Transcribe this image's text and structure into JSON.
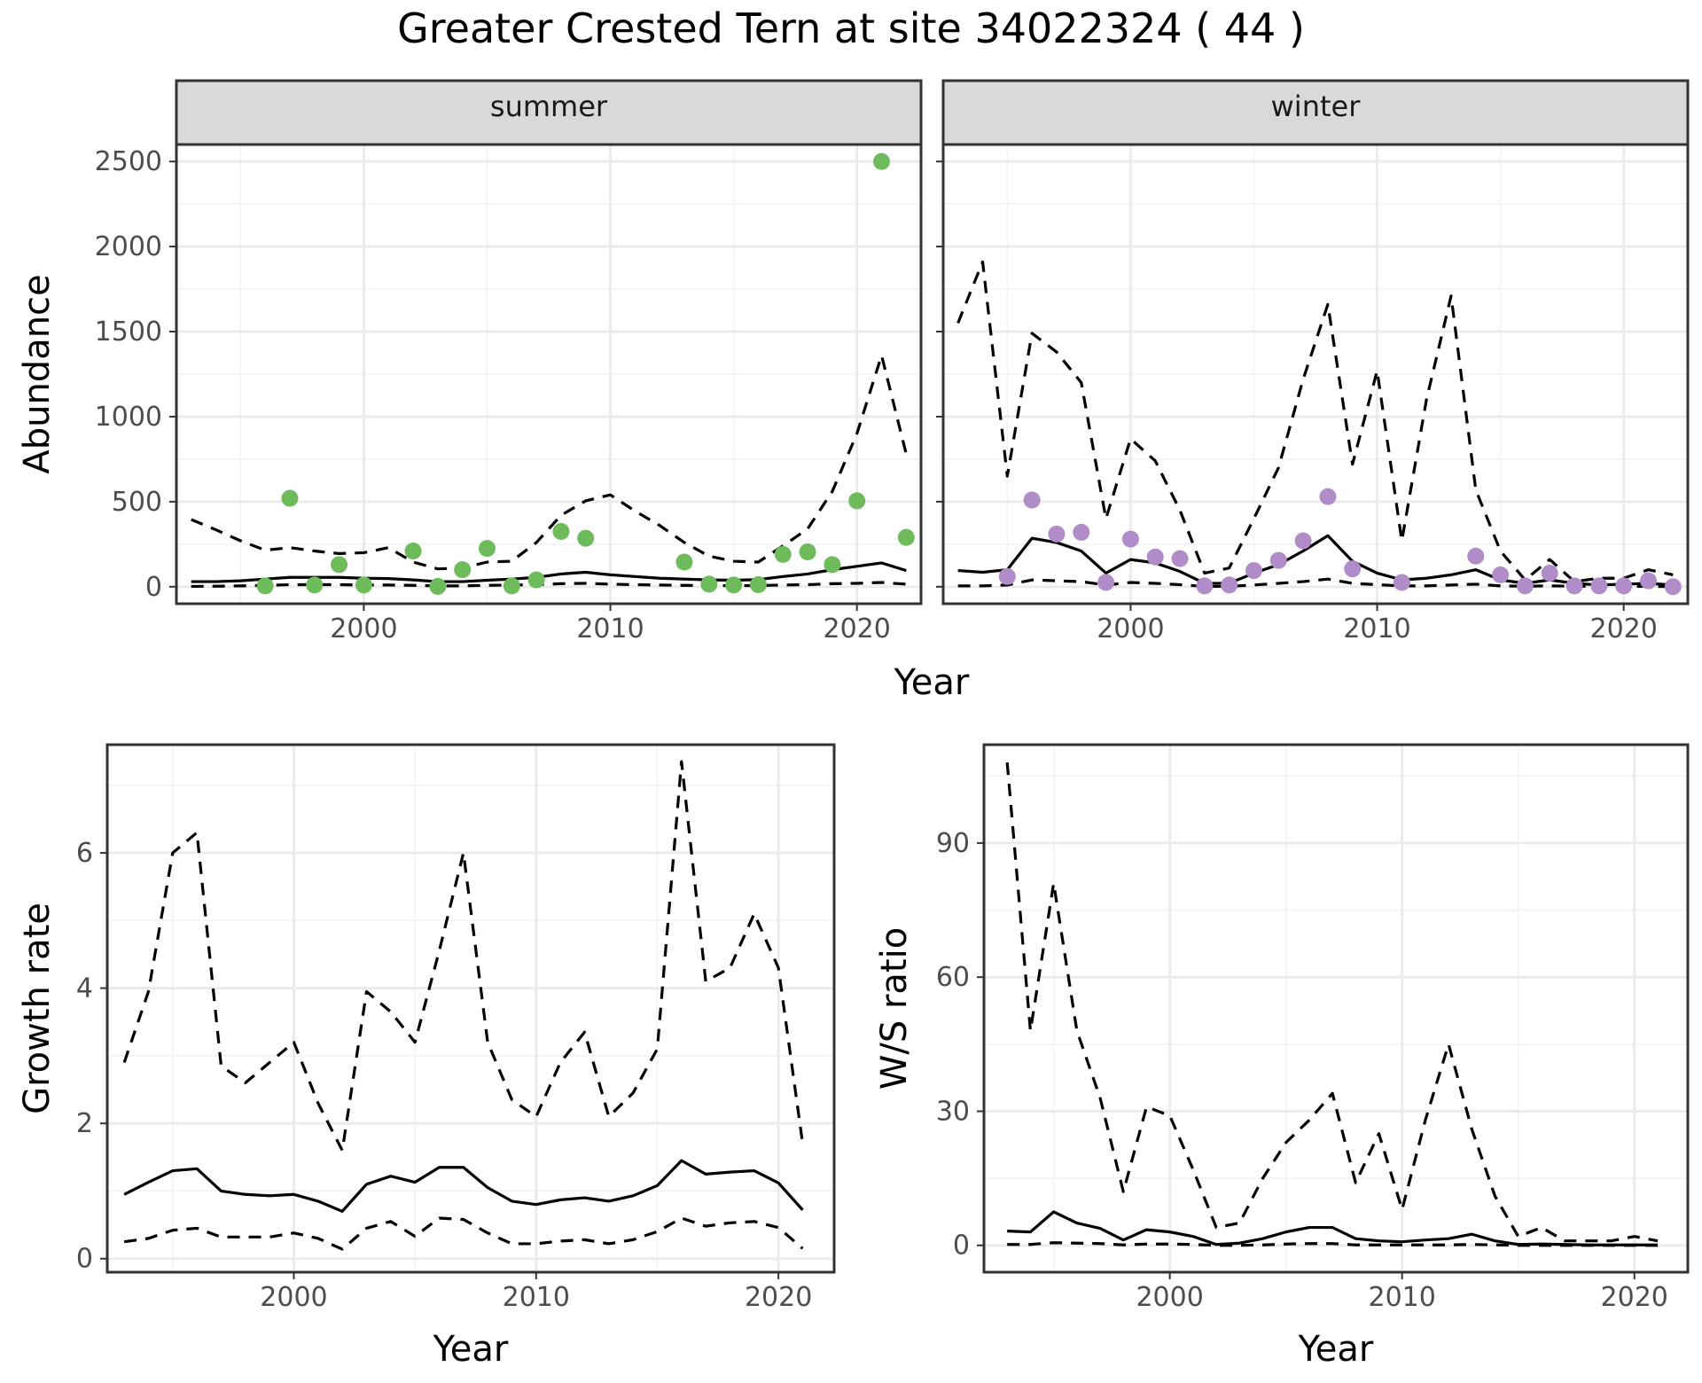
{
  "figure": {
    "title": "Greater Crested Tern at site 34022324 ( 44 )"
  },
  "colors": {
    "summer_points": "#6dbb5a",
    "winter_points": "#b08cc9",
    "line": "#000000",
    "grid_major": "#ebebeb",
    "grid_minor": "#f3f3f3",
    "strip_fill": "#d9d9d9",
    "panel_border": "#333333",
    "tick_label": "#4d4d4d"
  },
  "chart_data": [
    {
      "type": "scatter",
      "facet_strips": [
        "summer",
        "winter"
      ],
      "ylabel": "Abundance",
      "xlabel": "Year",
      "xlim": [
        1992.4,
        2022.6
      ],
      "ylim": [
        -100,
        2600
      ],
      "x_ticks": [
        2000,
        2010,
        2020
      ],
      "y_ticks": [
        0,
        500,
        1000,
        1500,
        2000,
        2500
      ],
      "grid": true,
      "legend": "none",
      "panels": [
        {
          "name": "summer",
          "points": [
            {
              "x": 1996,
              "y": 5
            },
            {
              "x": 1997,
              "y": 520
            },
            {
              "x": 1998,
              "y": 10
            },
            {
              "x": 1999,
              "y": 130
            },
            {
              "x": 2000,
              "y": 10
            },
            {
              "x": 2002,
              "y": 210
            },
            {
              "x": 2003,
              "y": 2
            },
            {
              "x": 2004,
              "y": 100
            },
            {
              "x": 2005,
              "y": 225
            },
            {
              "x": 2006,
              "y": 5
            },
            {
              "x": 2007,
              "y": 40
            },
            {
              "x": 2008,
              "y": 325
            },
            {
              "x": 2009,
              "y": 285
            },
            {
              "x": 2013,
              "y": 145
            },
            {
              "x": 2014,
              "y": 15
            },
            {
              "x": 2015,
              "y": 10
            },
            {
              "x": 2016,
              "y": 12
            },
            {
              "x": 2017,
              "y": 190
            },
            {
              "x": 2018,
              "y": 205
            },
            {
              "x": 2019,
              "y": 130
            },
            {
              "x": 2020,
              "y": 505
            },
            {
              "x": 2021,
              "y": 2500
            },
            {
              "x": 2022,
              "y": 290
            }
          ],
          "estimate": {
            "x": [
              1993,
              1994,
              1995,
              1996,
              1997,
              1998,
              1999,
              2000,
              2001,
              2002,
              2003,
              2004,
              2005,
              2006,
              2007,
              2008,
              2009,
              2010,
              2011,
              2012,
              2013,
              2014,
              2015,
              2016,
              2017,
              2018,
              2019,
              2020,
              2021,
              2022
            ],
            "y": [
              30,
              30,
              35,
              45,
              55,
              55,
              55,
              50,
              48,
              40,
              30,
              30,
              38,
              45,
              55,
              75,
              85,
              70,
              60,
              50,
              45,
              40,
              38,
              42,
              60,
              75,
              100,
              120,
              140,
              95
            ]
          },
          "upper": {
            "x": [
              1993,
              1994,
              1995,
              1996,
              1997,
              1998,
              1999,
              2000,
              2001,
              2002,
              2003,
              2004,
              2005,
              2006,
              2007,
              2008,
              2009,
              2010,
              2011,
              2012,
              2013,
              2014,
              2015,
              2016,
              2017,
              2018,
              2019,
              2020,
              2021,
              2022
            ],
            "y": [
              395,
              335,
              270,
              215,
              230,
              210,
              195,
              200,
              230,
              145,
              105,
              110,
              145,
              150,
              260,
              420,
              505,
              540,
              445,
              360,
              260,
              180,
              150,
              145,
              240,
              340,
              560,
              900,
              1360,
              780
            ]
          },
          "lower": {
            "x": [
              1993,
              1994,
              1995,
              1996,
              1997,
              1998,
              1999,
              2000,
              2001,
              2002,
              2003,
              2004,
              2005,
              2006,
              2007,
              2008,
              2009,
              2010,
              2011,
              2012,
              2013,
              2014,
              2015,
              2016,
              2017,
              2018,
              2019,
              2020,
              2021,
              2022
            ],
            "y": [
              2,
              3,
              5,
              8,
              12,
              12,
              12,
              10,
              10,
              8,
              5,
              5,
              8,
              10,
              12,
              18,
              20,
              15,
              12,
              10,
              8,
              7,
              6,
              7,
              10,
              12,
              18,
              20,
              25,
              15
            ]
          }
        },
        {
          "name": "winter",
          "points": [
            {
              "x": 1995,
              "y": 60
            },
            {
              "x": 1996,
              "y": 510
            },
            {
              "x": 1997,
              "y": 310
            },
            {
              "x": 1998,
              "y": 320
            },
            {
              "x": 1999,
              "y": 25
            },
            {
              "x": 2000,
              "y": 280
            },
            {
              "x": 2001,
              "y": 175
            },
            {
              "x": 2002,
              "y": 165
            },
            {
              "x": 2003,
              "y": 5
            },
            {
              "x": 2004,
              "y": 10
            },
            {
              "x": 2005,
              "y": 95
            },
            {
              "x": 2006,
              "y": 155
            },
            {
              "x": 2007,
              "y": 270
            },
            {
              "x": 2008,
              "y": 530
            },
            {
              "x": 2009,
              "y": 105
            },
            {
              "x": 2011,
              "y": 25
            },
            {
              "x": 2014,
              "y": 180
            },
            {
              "x": 2015,
              "y": 70
            },
            {
              "x": 2016,
              "y": 5
            },
            {
              "x": 2017,
              "y": 80
            },
            {
              "x": 2018,
              "y": 5
            },
            {
              "x": 2019,
              "y": 5
            },
            {
              "x": 2020,
              "y": 5
            },
            {
              "x": 2021,
              "y": 35
            },
            {
              "x": 2022,
              "y": 0
            }
          ],
          "estimate": {
            "x": [
              1993,
              1994,
              1995,
              1996,
              1997,
              1998,
              1999,
              2000,
              2001,
              2002,
              2003,
              2004,
              2005,
              2006,
              2007,
              2008,
              2009,
              2010,
              2011,
              2012,
              2013,
              2014,
              2015,
              2016,
              2017,
              2018,
              2019,
              2020,
              2021,
              2022
            ],
            "y": [
              95,
              85,
              100,
              285,
              260,
              210,
              80,
              160,
              140,
              90,
              20,
              20,
              80,
              130,
              210,
              300,
              150,
              80,
              40,
              50,
              70,
              100,
              40,
              20,
              40,
              20,
              10,
              15,
              20,
              10
            ]
          },
          "upper": {
            "x": [
              1993,
              1994,
              1995,
              1996,
              1997,
              1998,
              1999,
              2000,
              2001,
              2002,
              2003,
              2004,
              2005,
              2006,
              2007,
              2008,
              2009,
              2010,
              2011,
              2012,
              2013,
              2014,
              2015,
              2016,
              2017,
              2018,
              2019,
              2020,
              2021,
              2022
            ],
            "y": [
              1550,
              1910,
              650,
              1490,
              1380,
              1200,
              400,
              870,
              740,
              450,
              80,
              110,
              400,
              700,
              1220,
              1660,
              720,
              1270,
              270,
              1100,
              1710,
              570,
              210,
              40,
              160,
              30,
              50,
              50,
              100,
              70
            ]
          },
          "lower": {
            "x": [
              1993,
              1994,
              1995,
              1996,
              1997,
              1998,
              1999,
              2000,
              2001,
              2002,
              2003,
              2004,
              2005,
              2006,
              2007,
              2008,
              2009,
              2010,
              2011,
              2012,
              2013,
              2014,
              2015,
              2016,
              2017,
              2018,
              2019,
              2020,
              2021,
              2022
            ],
            "y": [
              5,
              5,
              10,
              40,
              35,
              30,
              10,
              25,
              20,
              12,
              2,
              2,
              10,
              20,
              30,
              45,
              20,
              12,
              5,
              5,
              10,
              15,
              5,
              3,
              5,
              3,
              1,
              2,
              2,
              1
            ]
          }
        }
      ]
    },
    {
      "type": "line",
      "ylabel": "Growth rate",
      "xlabel": "Year",
      "xlim": [
        1992.3,
        2022.3
      ],
      "ylim": [
        -0.2,
        7.6
      ],
      "x_ticks": [
        2000,
        2010,
        2020
      ],
      "y_ticks": [
        0,
        2,
        4,
        6
      ],
      "grid": true,
      "legend": "none",
      "estimate": {
        "x": [
          1993,
          1994,
          1995,
          1996,
          1997,
          1998,
          1999,
          2000,
          2001,
          2002,
          2003,
          2004,
          2005,
          2006,
          2007,
          2008,
          2009,
          2010,
          2011,
          2012,
          2013,
          2014,
          2015,
          2016,
          2017,
          2018,
          2019,
          2020,
          2021
        ],
        "y": [
          0.95,
          1.13,
          1.3,
          1.33,
          1.0,
          0.95,
          0.93,
          0.95,
          0.85,
          0.7,
          1.1,
          1.22,
          1.13,
          1.35,
          1.35,
          1.05,
          0.85,
          0.8,
          0.87,
          0.9,
          0.85,
          0.93,
          1.08,
          1.45,
          1.25,
          1.28,
          1.3,
          1.12,
          0.72
        ]
      },
      "upper": {
        "x": [
          1993,
          1994,
          1995,
          1996,
          1997,
          1998,
          1999,
          2000,
          2001,
          2002,
          2003,
          2004,
          2005,
          2006,
          2007,
          2008,
          2009,
          2010,
          2011,
          2012,
          2013,
          2014,
          2015,
          2016,
          2017,
          2018,
          2019,
          2020,
          2021
        ],
        "y": [
          2.9,
          3.95,
          6.0,
          6.3,
          2.85,
          2.6,
          2.9,
          3.2,
          2.3,
          1.6,
          3.95,
          3.65,
          3.2,
          4.55,
          6.0,
          3.2,
          2.35,
          2.1,
          2.9,
          3.35,
          2.1,
          2.45,
          3.1,
          7.35,
          4.1,
          4.3,
          5.1,
          4.3,
          1.7
        ]
      },
      "lower": {
        "x": [
          1993,
          1994,
          1995,
          1996,
          1997,
          1998,
          1999,
          2000,
          2001,
          2002,
          2003,
          2004,
          2005,
          2006,
          2007,
          2008,
          2009,
          2010,
          2011,
          2012,
          2013,
          2014,
          2015,
          2016,
          2017,
          2018,
          2019,
          2020,
          2021
        ],
        "y": [
          0.25,
          0.3,
          0.42,
          0.45,
          0.32,
          0.32,
          0.32,
          0.38,
          0.3,
          0.14,
          0.45,
          0.55,
          0.33,
          0.6,
          0.58,
          0.38,
          0.22,
          0.22,
          0.26,
          0.28,
          0.22,
          0.28,
          0.4,
          0.6,
          0.48,
          0.53,
          0.55,
          0.46,
          0.15
        ]
      }
    },
    {
      "type": "line",
      "ylabel": "W/S ratio",
      "xlabel": "Year",
      "xlim": [
        1992.0,
        2022.3
      ],
      "ylim": [
        -6,
        112
      ],
      "x_ticks": [
        2000,
        2010,
        2020
      ],
      "y_ticks": [
        0,
        30,
        60,
        90
      ],
      "grid": true,
      "legend": "none",
      "estimate": {
        "x": [
          1993,
          1994,
          1995,
          1996,
          1997,
          1998,
          1999,
          2000,
          2001,
          2002,
          2003,
          2004,
          2005,
          2006,
          2007,
          2008,
          2009,
          2010,
          2011,
          2012,
          2013,
          2014,
          2015,
          2016,
          2017,
          2018,
          2019,
          2020,
          2021
        ],
        "y": [
          3.2,
          3.0,
          7.5,
          5.0,
          3.8,
          1.2,
          3.5,
          3.0,
          2.0,
          0.2,
          0.5,
          1.5,
          3.0,
          4.0,
          4.0,
          1.5,
          1.0,
          0.8,
          1.2,
          1.5,
          2.5,
          1.0,
          0.2,
          0.3,
          0.2,
          0.1,
          0.1,
          0.1,
          0.1
        ]
      },
      "upper": {
        "x": [
          1993,
          1994,
          1995,
          1996,
          1997,
          1998,
          1999,
          2000,
          2001,
          2002,
          2003,
          2004,
          2005,
          2006,
          2007,
          2008,
          2009,
          2010,
          2011,
          2012,
          2013,
          2014,
          2015,
          2016,
          2017,
          2018,
          2019,
          2020,
          2021
        ],
        "y": [
          108,
          48,
          81,
          48,
          33,
          12,
          31,
          29,
          17,
          4,
          5,
          15,
          23,
          28,
          34,
          14,
          25,
          8,
          28,
          45,
          26,
          11,
          2,
          4,
          1,
          1,
          1,
          2,
          1
        ]
      },
      "lower": {
        "x": [
          1993,
          1994,
          1995,
          1996,
          1997,
          1998,
          1999,
          2000,
          2001,
          2002,
          2003,
          2004,
          2005,
          2006,
          2007,
          2008,
          2009,
          2010,
          2011,
          2012,
          2013,
          2014,
          2015,
          2016,
          2017,
          2018,
          2019,
          2020,
          2021
        ],
        "y": [
          0.2,
          0.2,
          0.6,
          0.5,
          0.4,
          0.1,
          0.3,
          0.3,
          0.2,
          0.0,
          0.0,
          0.1,
          0.3,
          0.4,
          0.4,
          0.1,
          0.1,
          0.1,
          0.1,
          0.1,
          0.2,
          0.1,
          0.0,
          0.0,
          0.0,
          0.0,
          0.0,
          0.0,
          0.0
        ]
      }
    }
  ]
}
